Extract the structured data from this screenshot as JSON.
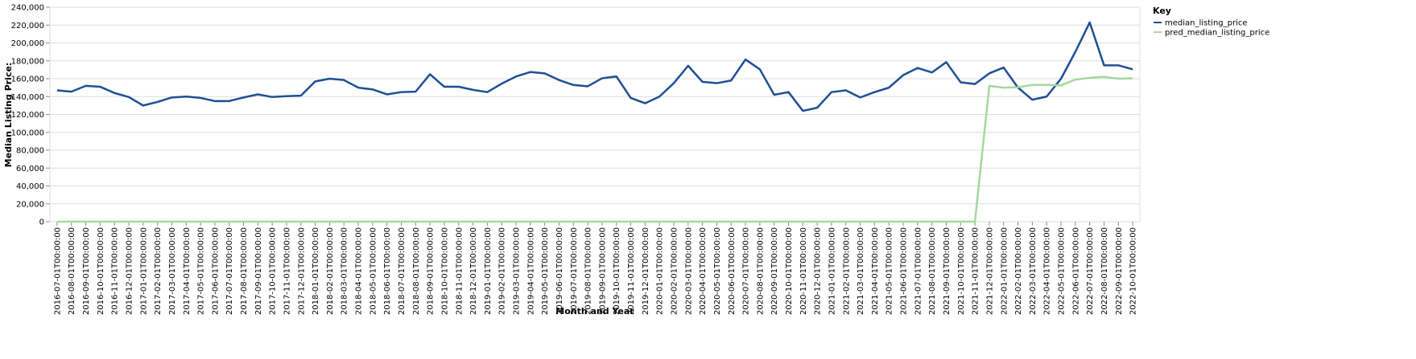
{
  "chart_data": {
    "type": "line",
    "x_label": "Month and Year",
    "y_label": "Median Listing Price:",
    "legend_title": "Key",
    "legend_position": "right",
    "grid": true,
    "categories": [
      "2016-07-01T00:00:00",
      "2016-08-01T00:00:00",
      "2016-09-01T00:00:00",
      "2016-10-01T00:00:00",
      "2016-11-01T00:00:00",
      "2016-12-01T00:00:00",
      "2017-01-01T00:00:00",
      "2017-02-01T00:00:00",
      "2017-03-01T00:00:00",
      "2017-04-01T00:00:00",
      "2017-05-01T00:00:00",
      "2017-06-01T00:00:00",
      "2017-07-01T00:00:00",
      "2017-08-01T00:00:00",
      "2017-09-01T00:00:00",
      "2017-10-01T00:00:00",
      "2017-11-01T00:00:00",
      "2017-12-01T00:00:00",
      "2018-01-01T00:00:00",
      "2018-02-01T00:00:00",
      "2018-03-01T00:00:00",
      "2018-04-01T00:00:00",
      "2018-05-01T00:00:00",
      "2018-06-01T00:00:00",
      "2018-07-01T00:00:00",
      "2018-08-01T00:00:00",
      "2018-09-01T00:00:00",
      "2018-10-01T00:00:00",
      "2018-11-01T00:00:00",
      "2018-12-01T00:00:00",
      "2019-01-01T00:00:00",
      "2019-02-01T00:00:00",
      "2019-03-01T00:00:00",
      "2019-04-01T00:00:00",
      "2019-05-01T00:00:00",
      "2019-06-01T00:00:00",
      "2019-07-01T00:00:00",
      "2019-08-01T00:00:00",
      "2019-09-01T00:00:00",
      "2019-10-01T00:00:00",
      "2019-11-01T00:00:00",
      "2019-12-01T00:00:00",
      "2020-01-01T00:00:00",
      "2020-02-01T00:00:00",
      "2020-03-01T00:00:00",
      "2020-04-01T00:00:00",
      "2020-05-01T00:00:00",
      "2020-06-01T00:00:00",
      "2020-07-01T00:00:00",
      "2020-08-01T00:00:00",
      "2020-09-01T00:00:00",
      "2020-10-01T00:00:00",
      "2020-11-01T00:00:00",
      "2020-12-01T00:00:00",
      "2021-01-01T00:00:00",
      "2021-02-01T00:00:00",
      "2021-03-01T00:00:00",
      "2021-04-01T00:00:00",
      "2021-05-01T00:00:00",
      "2021-06-01T00:00:00",
      "2021-07-01T00:00:00",
      "2021-08-01T00:00:00",
      "2021-09-01T00:00:00",
      "2021-10-01T00:00:00",
      "2021-11-01T00:00:00",
      "2021-12-01T00:00:00",
      "2022-01-01T00:00:00",
      "2022-02-01T00:00:00",
      "2022-03-01T00:00:00",
      "2022-04-01T00:00:00",
      "2022-05-01T00:00:00",
      "2022-06-01T00:00:00",
      "2022-07-01T00:00:00",
      "2022-08-01T00:00:00",
      "2022-09-01T00:00:00",
      "2022-10-01T00:00:00"
    ],
    "series": [
      {
        "name": "median_listing_price",
        "color": "#1f4e96",
        "values": [
          147000,
          145500,
          152000,
          151000,
          144000,
          139500,
          130000,
          134000,
          139000,
          140000,
          138500,
          135000,
          135000,
          139000,
          142500,
          139500,
          140500,
          141000,
          157000,
          160000,
          158500,
          150000,
          148000,
          142500,
          145000,
          145500,
          165000,
          151000,
          151000,
          147500,
          145000,
          154500,
          162500,
          167500,
          166000,
          158500,
          153000,
          151500,
          160500,
          162500,
          138500,
          132500,
          140000,
          155000,
          174500,
          156500,
          155000,
          158000,
          181500,
          170500,
          142000,
          145000,
          124000,
          127500,
          145000,
          147000,
          139000,
          145000,
          150000,
          164000,
          172000,
          167000,
          178500,
          156000,
          154000,
          166000,
          172500,
          150000,
          136500,
          140000,
          160000,
          190000,
          223000,
          175000,
          175000,
          170500
        ]
      },
      {
        "name": "pred_median_listing_price",
        "color": "#a3d99c",
        "values": [
          0,
          0,
          0,
          0,
          0,
          0,
          0,
          0,
          0,
          0,
          0,
          0,
          0,
          0,
          0,
          0,
          0,
          0,
          0,
          0,
          0,
          0,
          0,
          0,
          0,
          0,
          0,
          0,
          0,
          0,
          0,
          0,
          0,
          0,
          0,
          0,
          0,
          0,
          0,
          0,
          0,
          0,
          0,
          0,
          0,
          0,
          0,
          0,
          0,
          0,
          0,
          0,
          0,
          0,
          0,
          0,
          0,
          0,
          0,
          0,
          0,
          0,
          0,
          0,
          0,
          152000,
          150000,
          150500,
          153000,
          153000,
          152500,
          159000,
          161000,
          162000,
          160000,
          160500
        ]
      }
    ],
    "ylim": [
      0,
      240000
    ],
    "yticks": [
      0,
      {
        "value": 20000,
        "label": "20,000"
      },
      {
        "value": 40000,
        "label": "40,000"
      },
      {
        "value": 60000,
        "label": "60,000"
      },
      {
        "value": 80000,
        "label": "80,000"
      },
      {
        "value": 100000,
        "label": "100,000"
      },
      {
        "value": 120000,
        "label": "120,000"
      },
      {
        "value": 140000,
        "label": "140,000"
      },
      {
        "value": 160000,
        "label": "160,000"
      },
      {
        "value": 180000,
        "label": "180,000"
      },
      {
        "value": 200000,
        "label": "200,000"
      },
      {
        "value": 220000,
        "label": "220,000"
      },
      {
        "value": 240000,
        "label": "240,000"
      }
    ]
  }
}
